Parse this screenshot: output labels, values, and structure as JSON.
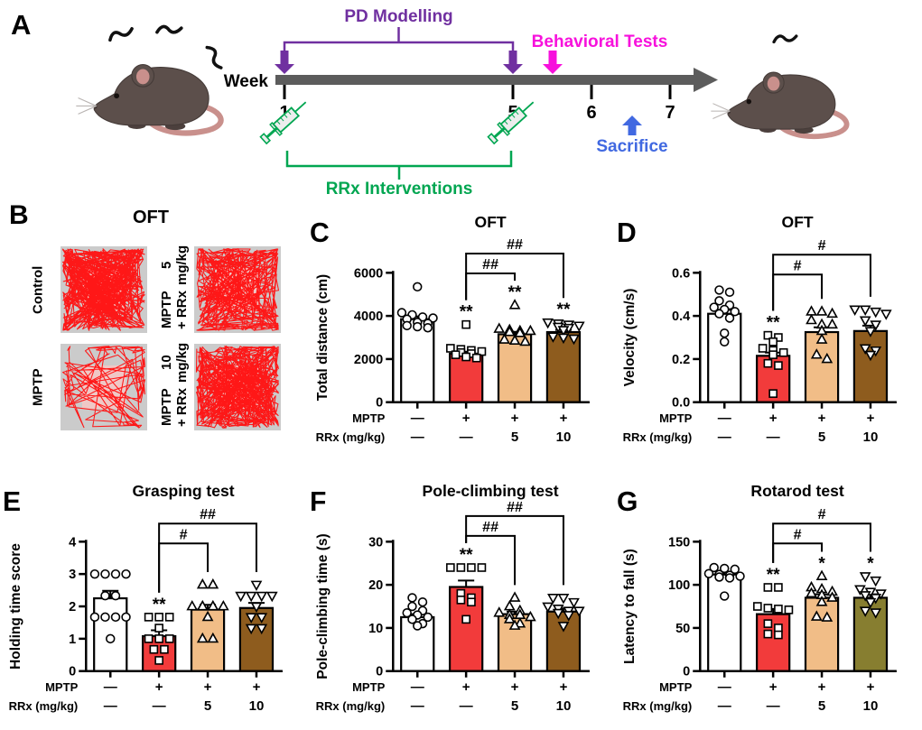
{
  "panel_a": {
    "label": "A",
    "week_label": "Week",
    "week_ticks": [
      "1",
      "5",
      "6",
      "7"
    ],
    "pd_modelling_label": "PD Modelling",
    "behavioral_tests_label": "Behavioral Tests",
    "rrx_interventions_label": "RRx Interventions",
    "sacrifice_label": "Sacrifice",
    "colors": {
      "pd_purple": "#7030A0",
      "behavioral_magenta": "#F711DC",
      "rrx_green": "#00A651",
      "sacrifice_blue": "#4169E1",
      "timeline_gray": "#5C5C5C"
    }
  },
  "panel_b": {
    "label": "B",
    "title": "OFT",
    "trace_color": "#FF0E0E",
    "arena_bg": "#CBCBCB",
    "center_zone": "#EFC8C6",
    "cells": [
      {
        "position": "top-left",
        "label_line1": "Control",
        "label_line2": "",
        "trace": {
          "seed": 11,
          "segments": 420,
          "wall_bias": 0.5
        }
      },
      {
        "position": "top-right",
        "label_line1": "MPTP + RRx",
        "label_line2": "5 mg/kg",
        "trace": {
          "seed": 23,
          "segments": 300,
          "wall_bias": 0.66
        }
      },
      {
        "position": "bottom-left",
        "label_line1": "MPTP",
        "label_line2": "",
        "trace": {
          "seed": 37,
          "segments": 120,
          "wall_bias": 0.85
        }
      },
      {
        "position": "bottom-right",
        "label_line1": "MPTP + RRx",
        "label_line2": "10 mg/kg",
        "trace": {
          "seed": 49,
          "segments": 380,
          "wall_bias": 0.6
        }
      }
    ]
  },
  "chart_data": [
    {
      "panel": "C",
      "type": "bar",
      "title": "OFT",
      "ylabel": "Total distance (cm)",
      "ylim": [
        0,
        6000
      ],
      "yticks": [
        0,
        2000,
        4000,
        6000
      ],
      "ytick_labels": [
        "0",
        "2000",
        "4000",
        "6000"
      ],
      "categories": [
        "Control",
        "MPTP",
        "MPTP+RRx 5",
        "MPTP+RRx 10"
      ],
      "xaxis_rows": [
        {
          "label": "MPTP",
          "values": [
            "—",
            "+",
            "+",
            "+"
          ]
        },
        {
          "label": "RRx (mg/kg)",
          "values": [
            "—",
            "—",
            "5",
            "10"
          ]
        }
      ],
      "bar_colors": [
        "#FFFFFF",
        "#F23B3B",
        "#F1BD87",
        "#8E5C1E"
      ],
      "markers": [
        "circle",
        "square",
        "triangle-up",
        "triangle-down"
      ],
      "values": [
        3850,
        2250,
        3150,
        3250
      ],
      "sem": [
        130,
        90,
        110,
        100
      ],
      "points": [
        [
          5350,
          4150,
          4050,
          3950,
          3900,
          3850,
          3700,
          3650,
          3550,
          3500,
          3450
        ],
        [
          3600,
          2500,
          2450,
          2400,
          2350,
          2300,
          2250,
          2200,
          2100,
          2050
        ],
        [
          4500,
          3400,
          3350,
          3300,
          3300,
          3250,
          3200,
          2900,
          2850,
          2800
        ],
        [
          3700,
          3650,
          3600,
          3550,
          3500,
          3450,
          3350,
          3050,
          3000,
          2950
        ]
      ],
      "sig_labels": [
        "",
        "**",
        "**",
        "**"
      ],
      "brackets": [
        {
          "from": 1,
          "to": 2,
          "label": "##"
        },
        {
          "from": 1,
          "to": 3,
          "label": "##"
        }
      ]
    },
    {
      "panel": "D",
      "type": "bar",
      "title": "OFT",
      "ylabel": "Velocity (cm/s)",
      "ylim": [
        0,
        0.6
      ],
      "yticks": [
        0,
        0.2,
        0.4,
        0.6
      ],
      "ytick_labels": [
        "0.0",
        "0.2",
        "0.4",
        "0.6"
      ],
      "categories": [
        "Control",
        "MPTP",
        "MPTP+RRx 5",
        "MPTP+RRx 10"
      ],
      "xaxis_rows": [
        {
          "label": "MPTP",
          "values": [
            "—",
            "+",
            "+",
            "+"
          ]
        },
        {
          "label": "RRx (mg/kg)",
          "values": [
            "—",
            "—",
            "5",
            "10"
          ]
        }
      ],
      "bar_colors": [
        "#FFFFFF",
        "#F23B3B",
        "#F1BD87",
        "#8E5C1E"
      ],
      "markers": [
        "circle",
        "square",
        "triangle-up",
        "triangle-down"
      ],
      "values": [
        0.41,
        0.215,
        0.325,
        0.33
      ],
      "sem": [
        0.018,
        0.015,
        0.022,
        0.025
      ],
      "points": [
        [
          0.52,
          0.51,
          0.47,
          0.45,
          0.44,
          0.43,
          0.42,
          0.41,
          0.39,
          0.32,
          0.28
        ],
        [
          0.31,
          0.3,
          0.28,
          0.25,
          0.24,
          0.23,
          0.22,
          0.18,
          0.17,
          0.04
        ],
        [
          0.42,
          0.42,
          0.41,
          0.38,
          0.36,
          0.36,
          0.33,
          0.29,
          0.22,
          0.2
        ],
        [
          0.43,
          0.43,
          0.42,
          0.41,
          0.38,
          0.36,
          0.33,
          0.25,
          0.24,
          0.22
        ]
      ],
      "sig_labels": [
        "",
        "**",
        "",
        ""
      ],
      "brackets": [
        {
          "from": 1,
          "to": 2,
          "label": "#"
        },
        {
          "from": 1,
          "to": 3,
          "label": "#"
        }
      ]
    },
    {
      "panel": "E",
      "type": "bar",
      "title": "Grasping test",
      "ylabel": "Holding time score",
      "ylim": [
        0,
        4
      ],
      "yticks": [
        0,
        1,
        2,
        3,
        4
      ],
      "ytick_labels": [
        "0",
        "1",
        "2",
        "3",
        "4"
      ],
      "categories": [
        "Control",
        "MPTP",
        "MPTP+RRx 5",
        "MPTP+RRx 10"
      ],
      "xaxis_rows": [
        {
          "label": "MPTP",
          "values": [
            "—",
            "+",
            "+",
            "+"
          ]
        },
        {
          "label": "RRx (mg/kg)",
          "values": [
            "—",
            "—",
            "5",
            "10"
          ]
        }
      ],
      "bar_colors": [
        "#FFFFFF",
        "#F23B3B",
        "#F1BD87",
        "#8E5C1E"
      ],
      "markers": [
        "circle",
        "square",
        "triangle-up",
        "triangle-down"
      ],
      "values": [
        2.25,
        1.08,
        1.9,
        1.95
      ],
      "sem": [
        0.23,
        0.18,
        0.15,
        0.16
      ],
      "points": [
        [
          3,
          3,
          3,
          3,
          2.33,
          2.33,
          1.67,
          1.67,
          1.67,
          1.67,
          1.0
        ],
        [
          1.67,
          1.67,
          1.67,
          1.33,
          1.0,
          1.0,
          1.0,
          0.67,
          0.67,
          0.33
        ],
        [
          2.67,
          2.67,
          2.0,
          2.0,
          2.0,
          2.0,
          2.0,
          2.0,
          1.67,
          1.0,
          1.0
        ],
        [
          2.67,
          2.33,
          2.33,
          2.33,
          2.33,
          2.0,
          1.67,
          1.67,
          1.33,
          1.33
        ]
      ],
      "sig_labels": [
        "",
        "**",
        "",
        ""
      ],
      "brackets": [
        {
          "from": 1,
          "to": 2,
          "label": "#"
        },
        {
          "from": 1,
          "to": 3,
          "label": "##"
        }
      ]
    },
    {
      "panel": "F",
      "type": "bar",
      "title": "Pole-climbing test",
      "ylabel": "Pole-climbing time (s)",
      "ylim": [
        0,
        30
      ],
      "yticks": [
        0,
        10,
        20,
        30
      ],
      "ytick_labels": [
        "0",
        "10",
        "20",
        "30"
      ],
      "categories": [
        "Control",
        "MPTP",
        "MPTP+RRx 5",
        "MPTP+RRx 10"
      ],
      "xaxis_rows": [
        {
          "label": "MPTP",
          "values": [
            "—",
            "+",
            "+",
            "+"
          ]
        },
        {
          "label": "RRx (mg/kg)",
          "values": [
            "—",
            "—",
            "5",
            "10"
          ]
        }
      ],
      "bar_colors": [
        "#FFFFFF",
        "#F23B3B",
        "#F1BD87",
        "#8E5C1E"
      ],
      "markers": [
        "circle",
        "square",
        "triangle-up",
        "triangle-down"
      ],
      "values": [
        12.5,
        19.5,
        13.2,
        13.8
      ],
      "sem": [
        0.7,
        1.5,
        0.6,
        0.7
      ],
      "points": [
        [
          17,
          16,
          15,
          14,
          13.5,
          13,
          12.5,
          12,
          11,
          10.5
        ],
        [
          24,
          24,
          24,
          24,
          18,
          17,
          16.5,
          16,
          12
        ],
        [
          17,
          15,
          14,
          13.5,
          13,
          13,
          12.5,
          12,
          11,
          10.5
        ],
        [
          17,
          17,
          16,
          15,
          14.5,
          14,
          14,
          13.5,
          13,
          10.5
        ]
      ],
      "sig_labels": [
        "",
        "**",
        "",
        ""
      ],
      "brackets": [
        {
          "from": 1,
          "to": 2,
          "label": "##"
        },
        {
          "from": 1,
          "to": 3,
          "label": "##"
        }
      ]
    },
    {
      "panel": "G",
      "type": "bar",
      "title": "Rotarod test",
      "ylabel": "Latency to fall (s)",
      "ylim": [
        0,
        150
      ],
      "yticks": [
        0,
        50,
        100,
        150
      ],
      "ytick_labels": [
        "0",
        "50",
        "100",
        "150"
      ],
      "categories": [
        "Control",
        "MPTP",
        "MPTP+RRx 5",
        "MPTP+RRx 10"
      ],
      "xaxis_rows": [
        {
          "label": "MPTP",
          "values": [
            "—",
            "+",
            "+",
            "+"
          ]
        },
        {
          "label": "RRx (mg/kg)",
          "values": [
            "—",
            "—",
            "5",
            "10"
          ]
        }
      ],
      "bar_colors": [
        "#FFFFFF",
        "#F23B3B",
        "#F1BD87",
        "#877E30"
      ],
      "markers": [
        "circle",
        "square",
        "triangle-up",
        "triangle-down"
      ],
      "values": [
        112,
        66,
        85,
        85
      ],
      "sem": [
        3,
        6,
        4,
        4
      ],
      "points": [
        [
          120,
          119,
          118,
          113,
          112,
          111,
          110,
          109,
          108,
          87
        ],
        [
          97,
          97,
          75,
          73,
          72,
          71,
          55,
          50,
          43,
          42
        ],
        [
          110,
          97,
          95,
          92,
          90,
          88,
          85,
          80,
          63,
          62
        ],
        [
          110,
          105,
          95,
          92,
          90,
          88,
          85,
          80,
          70,
          68
        ]
      ],
      "sig_labels": [
        "",
        "**",
        "*",
        "*"
      ],
      "brackets": [
        {
          "from": 1,
          "to": 2,
          "label": "#"
        },
        {
          "from": 1,
          "to": 3,
          "label": "#"
        }
      ]
    }
  ]
}
